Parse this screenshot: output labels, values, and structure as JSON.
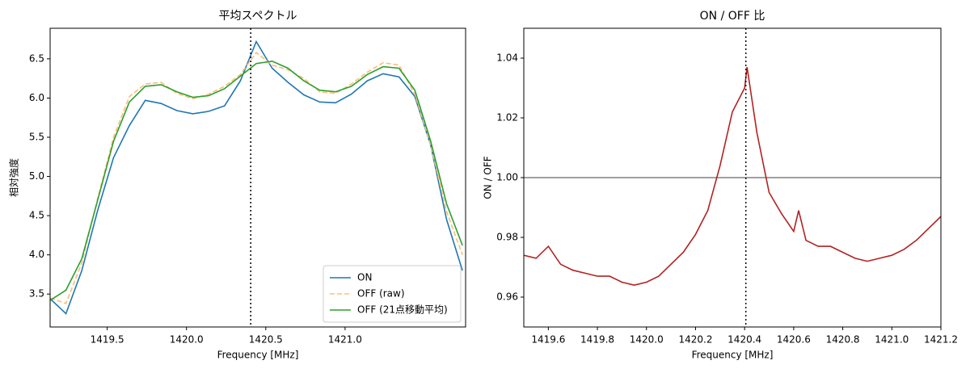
{
  "chart_data": [
    {
      "type": "line",
      "title": "平均スペクトル",
      "xlabel": "Frequency [MHz]",
      "ylabel": "相対強度",
      "x": [
        1419.14,
        1419.24,
        1419.34,
        1419.44,
        1419.54,
        1419.64,
        1419.74,
        1419.84,
        1419.94,
        1420.04,
        1420.14,
        1420.24,
        1420.34,
        1420.44,
        1420.54,
        1420.64,
        1420.74,
        1420.84,
        1420.94,
        1421.04,
        1421.14,
        1421.24,
        1421.34,
        1421.44,
        1421.54,
        1421.64,
        1421.74
      ],
      "series": [
        {
          "name": "ON",
          "color": "#1f77b4",
          "linestyle": "solid",
          "values": [
            3.44,
            3.25,
            3.8,
            4.57,
            5.24,
            5.65,
            5.97,
            5.93,
            5.84,
            5.8,
            5.83,
            5.9,
            6.22,
            6.72,
            6.38,
            6.2,
            6.04,
            5.95,
            5.94,
            6.05,
            6.22,
            6.31,
            6.27,
            6.02,
            5.4,
            4.45,
            3.8
          ]
        },
        {
          "name": "OFF (raw)",
          "color": "#ffbb78",
          "linestyle": "dashed",
          "values": [
            3.45,
            3.38,
            3.9,
            4.72,
            5.5,
            6.02,
            6.18,
            6.2,
            6.06,
            5.99,
            6.05,
            6.15,
            6.3,
            6.58,
            6.42,
            6.36,
            6.25,
            6.08,
            6.06,
            6.18,
            6.33,
            6.45,
            6.42,
            6.05,
            5.4,
            4.55,
            4.0
          ]
        },
        {
          "name": "OFF (21点移動平均)",
          "color": "#2ca02c",
          "linestyle": "solid",
          "values": [
            3.42,
            3.55,
            3.95,
            4.7,
            5.45,
            5.95,
            6.15,
            6.17,
            6.08,
            6.01,
            6.03,
            6.12,
            6.28,
            6.44,
            6.47,
            6.38,
            6.22,
            6.1,
            6.08,
            6.15,
            6.3,
            6.4,
            6.38,
            6.1,
            5.45,
            4.65,
            4.12
          ]
        }
      ],
      "xlim": [
        1419.14,
        1421.76
      ],
      "ylim": [
        3.08,
        6.89
      ],
      "xticks": [
        1419.5,
        {
          "value": 1420.0,
          "label": "1420.0"
        },
        1420.5,
        {
          "value": 1421.0,
          "label": "1421.0"
        }
      ],
      "yticks": [
        3.5,
        {
          "value": 4.0,
          "label": "4.0"
        },
        4.5,
        {
          "value": 5.0,
          "label": "5.0"
        },
        5.5,
        {
          "value": 6.0,
          "label": "6.0"
        },
        6.5
      ],
      "vline": 1420.405,
      "legend": "lower right"
    },
    {
      "type": "line",
      "title": "ON / OFF 比",
      "xlabel": "Frequency [MHz]",
      "ylabel": "ON / OFF",
      "x": [
        1419.5,
        1419.55,
        1419.6,
        1419.65,
        1419.7,
        1419.75,
        1419.8,
        1419.85,
        1419.9,
        1419.95,
        1420.0,
        1420.05,
        1420.1,
        1420.15,
        1420.2,
        1420.25,
        1420.3,
        1420.35,
        1420.4,
        1420.41,
        1420.45,
        1420.5,
        1420.55,
        1420.6,
        1420.62,
        1420.65,
        1420.7,
        1420.75,
        1420.8,
        1420.85,
        1420.9,
        1420.95,
        1421.0,
        1421.05,
        1421.1,
        1421.15,
        1421.2
      ],
      "series": [
        {
          "name": "ON / OFF",
          "color": "#b22222",
          "linestyle": "solid",
          "values": [
            0.974,
            0.973,
            0.977,
            0.971,
            0.969,
            0.968,
            0.967,
            0.967,
            0.965,
            0.964,
            0.965,
            0.967,
            0.971,
            0.975,
            0.981,
            0.989,
            1.004,
            1.022,
            1.03,
            1.037,
            1.015,
            0.995,
            0.988,
            0.982,
            0.989,
            0.979,
            0.977,
            0.977,
            0.975,
            0.973,
            0.972,
            0.973,
            0.974,
            0.976,
            0.979,
            0.983,
            0.987
          ]
        }
      ],
      "xlim": [
        1419.5,
        1421.2
      ],
      "ylim": [
        0.95,
        1.05
      ],
      "xticks": [
        1419.6,
        1419.8,
        {
          "value": 1420.0,
          "label": "1420.0"
        },
        1420.2,
        1420.4,
        1420.6,
        1420.8,
        {
          "value": 1421.0,
          "label": "1421.0"
        },
        1421.2
      ],
      "yticks": [
        0.96,
        0.98,
        {
          "value": 1.0,
          "label": "1.00"
        },
        1.02,
        1.04
      ],
      "vline": 1420.405,
      "hline": 1.0
    }
  ]
}
